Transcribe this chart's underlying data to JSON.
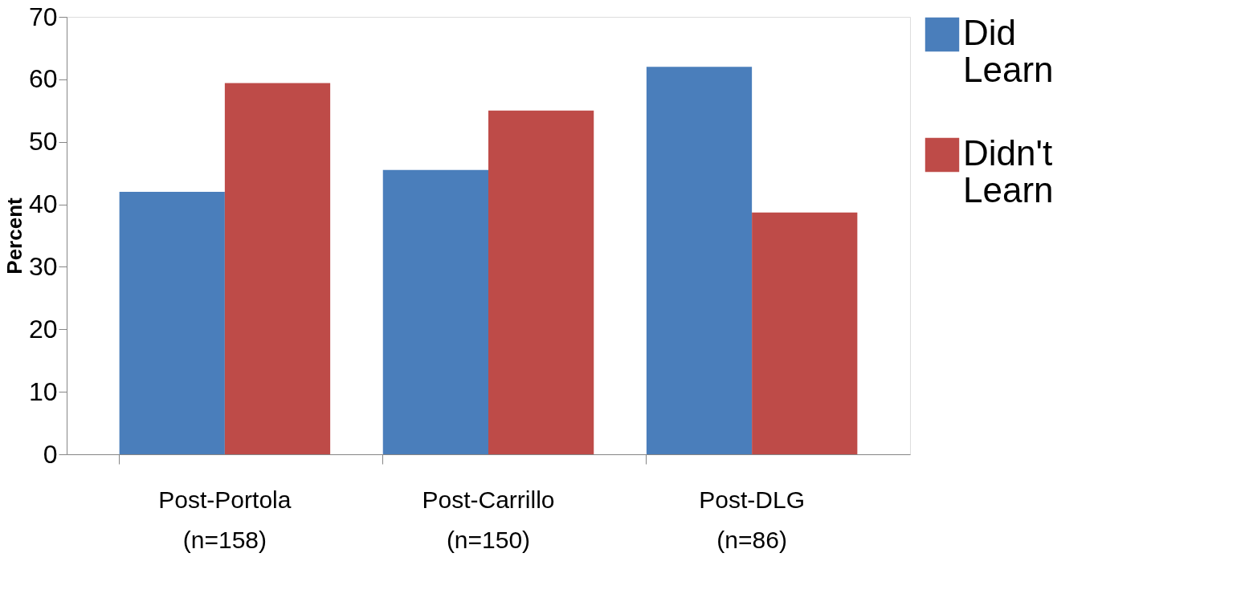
{
  "chart_data": {
    "type": "bar",
    "ylabel": "Percent",
    "categories": [
      "Post-Portola\n(n=158)",
      "Post-Carrillo\n(n=150)",
      "Post-DLG\n(n=86)"
    ],
    "series": [
      {
        "name": "Did Learn",
        "color": "#4a7ebb",
        "values": [
          42,
          45.5,
          62
        ]
      },
      {
        "name": "Didn't Learn",
        "color": "#be4b48",
        "values": [
          59.4,
          55,
          38.7
        ]
      }
    ],
    "ylim": [
      0,
      70
    ],
    "yticks": [
      0,
      10,
      20,
      30,
      40,
      50,
      60,
      70
    ],
    "grid": false,
    "legend": "right"
  }
}
